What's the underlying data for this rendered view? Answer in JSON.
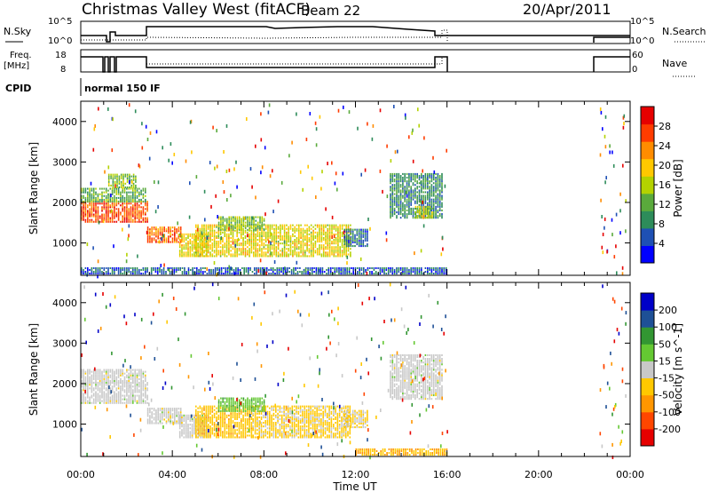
{
  "header": {
    "station": "Christmas Valley West (fitACF)",
    "beam": "Beam 22",
    "date": "20/Apr/2011"
  },
  "status_panel": {
    "nsky_label": "N.Sky",
    "nsearch_label": "N.Search",
    "freq_label_line1": "Freq.",
    "freq_label_line2": "[MHz]",
    "nave_label": "Nave",
    "cpid_label": "CPID",
    "cpid_value": "normal 150 IF",
    "noise_ticks_left": [
      "10^5",
      "10^0"
    ],
    "noise_ticks_right": [
      "10^5",
      "10^0"
    ],
    "freq_ticks": [
      "18",
      "8"
    ],
    "nave_ticks": [
      "60",
      "0"
    ]
  },
  "chart_data": [
    {
      "type": "heatmap",
      "panel": "power",
      "title": "",
      "xlabel": "Time UT",
      "ylabel": "Slant Range [km]",
      "x_ticks": [
        "00:00",
        "04:00",
        "08:00",
        "12:00",
        "16:00",
        "20:00",
        "00:00"
      ],
      "y_ticks": [
        "1000",
        "2000",
        "3000",
        "4000"
      ],
      "xlim_hours": [
        0,
        24
      ],
      "ylim_km": [
        200,
        4500
      ],
      "colorbar": {
        "label": "Power [dB]",
        "ticks": [
          "4",
          "8",
          "12",
          "16",
          "20",
          "24",
          "28"
        ],
        "range": [
          0,
          32
        ]
      },
      "regions": [
        {
          "t0": 0.0,
          "t1": 2.9,
          "r0": 1500,
          "r1": 2000,
          "value": 26
        },
        {
          "t0": 2.9,
          "t1": 4.4,
          "r0": 1000,
          "r1": 1400,
          "value": 25
        },
        {
          "t0": 4.3,
          "t1": 5.5,
          "r0": 650,
          "r1": 1200,
          "value": 18
        },
        {
          "t0": 5.0,
          "t1": 11.8,
          "r0": 650,
          "r1": 1450,
          "value": 18
        },
        {
          "t0": 6.0,
          "t1": 8.0,
          "r0": 1300,
          "r1": 1650,
          "value": 14
        },
        {
          "t0": 11.5,
          "t1": 12.5,
          "r0": 900,
          "r1": 1350,
          "value": 7
        },
        {
          "t0": 0.0,
          "t1": 2.8,
          "r0": 2000,
          "r1": 2350,
          "value": 12
        },
        {
          "t0": 1.2,
          "t1": 2.4,
          "r0": 2350,
          "r1": 2700,
          "value": 14
        },
        {
          "t0": 13.5,
          "t1": 15.8,
          "r0": 1600,
          "r1": 2700,
          "value": 9
        },
        {
          "t0": 14.6,
          "t1": 15.4,
          "r0": 1600,
          "r1": 1900,
          "value": 16
        },
        {
          "t0": 0.0,
          "t1": 16.0,
          "r0": 220,
          "r1": 380,
          "value": 6
        }
      ]
    },
    {
      "type": "heatmap",
      "panel": "velocity",
      "title": "",
      "xlabel": "Time UT",
      "ylabel": "Slant Range [km]",
      "x_ticks": [
        "00:00",
        "04:00",
        "08:00",
        "12:00",
        "16:00",
        "20:00",
        "00:00"
      ],
      "y_ticks": [
        "1000",
        "2000",
        "3000",
        "4000"
      ],
      "xlim_hours": [
        0,
        24
      ],
      "ylim_km": [
        200,
        4500
      ],
      "colorbar": {
        "label": "Velocity [m s^-1]",
        "ticks": [
          "200",
          "100",
          "50",
          "15",
          "-15",
          "-50",
          "-100",
          "-200"
        ],
        "range": [
          -250,
          250
        ]
      },
      "regions": [
        {
          "t0": 0.0,
          "t1": 2.9,
          "r0": 1500,
          "r1": 2000,
          "value": 0
        },
        {
          "t0": 2.9,
          "t1": 4.4,
          "r0": 1000,
          "r1": 1400,
          "value": 0
        },
        {
          "t0": 4.3,
          "t1": 5.5,
          "r0": 650,
          "r1": 1200,
          "value": 0
        },
        {
          "t0": 5.0,
          "t1": 7.5,
          "r0": 650,
          "r1": 1450,
          "value": -60
        },
        {
          "t0": 7.5,
          "t1": 11.8,
          "r0": 650,
          "r1": 1450,
          "value": -40
        },
        {
          "t0": 6.0,
          "t1": 8.0,
          "r0": 1300,
          "r1": 1650,
          "value": 60
        },
        {
          "t0": 11.5,
          "t1": 12.5,
          "r0": 900,
          "r1": 1350,
          "value": -30
        },
        {
          "t0": 0.0,
          "t1": 2.8,
          "r0": 2000,
          "r1": 2350,
          "value": 0
        },
        {
          "t0": 13.5,
          "t1": 15.8,
          "r0": 1600,
          "r1": 2700,
          "value": 0
        },
        {
          "t0": 12.0,
          "t1": 16.0,
          "r0": 220,
          "r1": 380,
          "value": -80
        }
      ]
    }
  ],
  "colors": {
    "power_scale": [
      "#0000ff",
      "#1e50b4",
      "#2d8c5a",
      "#5aaa3c",
      "#b4d200",
      "#ffc800",
      "#ff8c00",
      "#ff3c00",
      "#e60000"
    ],
    "velocity_scale": [
      "#e60000",
      "#ff4600",
      "#ff9600",
      "#ffc800",
      "#c8c8c8",
      "#64c832",
      "#329632",
      "#1e5096",
      "#0000c8"
    ],
    "ground_scatter": "#c8c8c8"
  }
}
